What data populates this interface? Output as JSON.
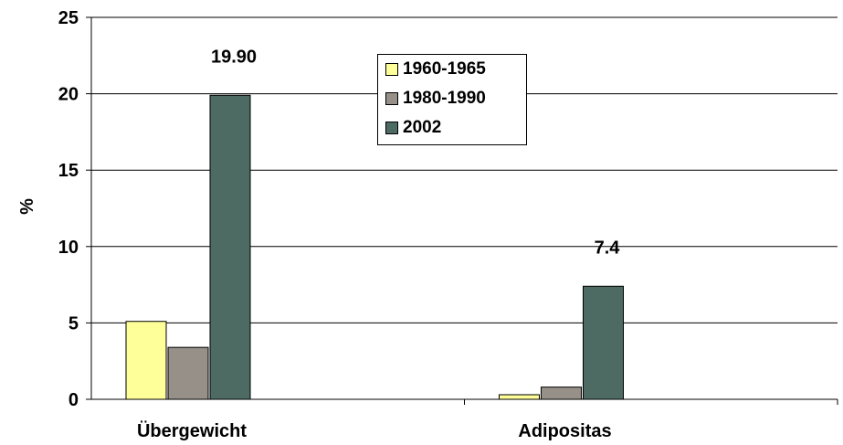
{
  "chart_data": {
    "type": "bar",
    "title": "",
    "xlabel": "",
    "ylabel": "%",
    "ylim": [
      0,
      25
    ],
    "yticks": [
      "0",
      "5",
      "10",
      "15",
      "20",
      "25"
    ],
    "grid": true,
    "legend_position": "top-center",
    "categories": [
      "Übergewicht",
      "Adipositas"
    ],
    "series": [
      {
        "name": "1960-1965",
        "color": "#FFFF99",
        "values": [
          5.1,
          0.3
        ]
      },
      {
        "name": "1980-1990",
        "color": "#969088",
        "values": [
          3.4,
          0.8
        ]
      },
      {
        "name": "2002",
        "color": "#4D6B63",
        "values": [
          19.9,
          7.4
        ]
      }
    ],
    "data_labels": [
      {
        "series": 2,
        "category": 0,
        "text": "19.90"
      },
      {
        "series": 2,
        "category": 1,
        "text": "7.4"
      }
    ]
  }
}
